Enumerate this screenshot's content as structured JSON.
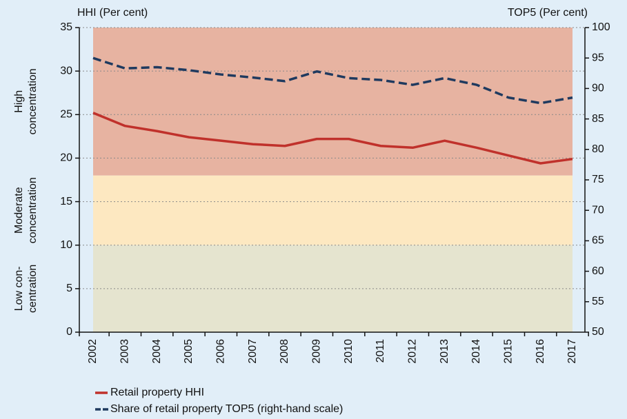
{
  "chart_data": {
    "type": "line",
    "y_label": "HHI (Per cent)",
    "y2_label": "TOP5 (Per cent)",
    "categories": [
      "2002",
      "2003",
      "2004",
      "2005",
      "2006",
      "2007",
      "2008",
      "2009",
      "2010",
      "2011",
      "2012",
      "2013",
      "2014",
      "2015",
      "2016",
      "2017"
    ],
    "series": [
      {
        "name": "Retail property HHI",
        "color": "#c0312b",
        "dash": false,
        "values": [
          25.2,
          23.7,
          23.1,
          22.4,
          22.0,
          21.6,
          21.4,
          22.2,
          22.2,
          21.4,
          21.2,
          22.0,
          21.2,
          20.3,
          19.4,
          19.9
        ]
      },
      {
        "name": "Share of retail property TOP5 (right-hand scale)",
        "color": "#1f3a5f",
        "dash": true,
        "axis": "y2",
        "values": [
          95.0,
          93.3,
          93.5,
          93.0,
          92.3,
          91.8,
          91.2,
          92.8,
          91.7,
          91.4,
          90.6,
          91.7,
          90.6,
          88.5,
          87.6,
          88.5
        ]
      }
    ],
    "bands": [
      {
        "label_lines": [
          "High",
          "concentration"
        ],
        "from": 18,
        "to": 35,
        "color": "#e7b3a1"
      },
      {
        "label_lines": [
          "Moderate",
          "concentration"
        ],
        "from": 10,
        "to": 18,
        "color": "#fde8c1"
      },
      {
        "label_lines": [
          "Low con-",
          "centration"
        ],
        "from": 0,
        "to": 10,
        "color": "#e5e4cf"
      }
    ],
    "ylim": [
      0,
      35
    ],
    "yticks": [
      0,
      5,
      10,
      15,
      20,
      25,
      30,
      35
    ],
    "y2lim": [
      50,
      100
    ],
    "y2ticks": [
      50,
      55,
      60,
      65,
      70,
      75,
      80,
      85,
      90,
      95,
      100
    ],
    "grid": true
  }
}
